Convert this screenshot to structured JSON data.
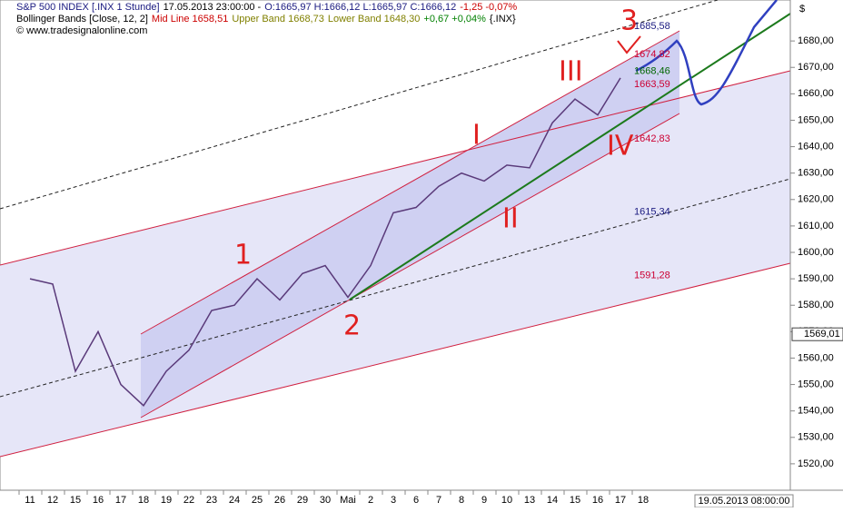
{
  "chart_data": {
    "type": "line",
    "header_lines": [
      [
        {
          "text": "S&P 500 INDEX [.INX  1 Stunde]",
          "color": "#1a1a80"
        },
        {
          "text": "17.05.2013 23:00:00 -",
          "color": "#000000"
        },
        {
          "text": "O:1665,97 H:1666,12 L:1665,97 C:1666,12",
          "color": "#1a1a80"
        },
        {
          "text": "-1,25 -0,07%",
          "color": "#cc0000"
        }
      ],
      [
        {
          "text": "Bollinger Bands [Close, 12, 2]",
          "color": "#000000"
        },
        {
          "text": "Mid Line 1658,51",
          "color": "#cc0000"
        },
        {
          "text": "Upper Band 1668,73",
          "color": "#808000"
        },
        {
          "text": "Lower Band 1648,30",
          "color": "#808000"
        },
        {
          "text": "+0,67 +0,04%",
          "color": "#008000"
        },
        {
          "text": "{.INX}",
          "color": "#000000"
        }
      ],
      [
        {
          "text": "© www.tradesignalonline.com",
          "color": "#000000"
        }
      ]
    ],
    "y_axis_label": "$",
    "timestamp": "19.05.2013 08:00:00",
    "categories": [
      "11",
      "12",
      "15",
      "16",
      "17",
      "18",
      "19",
      "22",
      "23",
      "24",
      "25",
      "26",
      "29",
      "30",
      "Mai",
      "2",
      "3",
      "6",
      "7",
      "8",
      "9",
      "10",
      "13",
      "14",
      "15",
      "16",
      "17",
      "18"
    ],
    "series": [
      {
        "name": "S&P 500 INDEX",
        "color": "#5a3a7a",
        "values": [
          1590,
          1588,
          1555,
          1570,
          1550,
          1542,
          1555,
          1563,
          1578,
          1580,
          1590,
          1582,
          1592,
          1595,
          1583,
          1595,
          1615,
          1617,
          1625,
          1630,
          1627,
          1633,
          1632,
          1649,
          1658,
          1652,
          1666,
          null
        ]
      }
    ],
    "ylim": [
      1510,
      1695.5
    ],
    "yticks": [
      {
        "value": 1520,
        "label": "1520,00"
      },
      {
        "value": 1530,
        "label": "1530,00"
      },
      {
        "value": 1540,
        "label": "1540,00"
      },
      {
        "value": 1550,
        "label": "1550,00"
      },
      {
        "value": 1560,
        "label": "1560,00"
      },
      {
        "value": 1570,
        "label": "1570,00"
      },
      {
        "value": 1580,
        "label": "1580,00"
      },
      {
        "value": 1590,
        "label": "1590,00"
      },
      {
        "value": 1600,
        "label": "1600,00"
      },
      {
        "value": 1610,
        "label": "1610,00"
      },
      {
        "value": 1620,
        "label": "1620,00"
      },
      {
        "value": 1630,
        "label": "1630,00"
      },
      {
        "value": 1640,
        "label": "1640,00"
      },
      {
        "value": 1650,
        "label": "1650,00"
      },
      {
        "value": 1660,
        "label": "1660,00"
      },
      {
        "value": 1670,
        "label": "1670,00"
      },
      {
        "value": 1680,
        "label": "1680,00"
      }
    ],
    "last_price": {
      "value": 1569.01,
      "label": "1569,01"
    },
    "price_labels": [
      {
        "value": 1685.58,
        "label": "1685,58",
        "color": "#1a1a80"
      },
      {
        "value": 1674.82,
        "label": "1674,82",
        "color": "#cc0033"
      },
      {
        "value": 1668.46,
        "label": "1668,46",
        "color": "#006600"
      },
      {
        "value": 1663.59,
        "label": "1663,59",
        "color": "#cc0033"
      },
      {
        "value": 1642.83,
        "label": "1642,83",
        "color": "#cc0033"
      },
      {
        "value": 1615.34,
        "label": "1615,34",
        "color": "#1a1a80"
      },
      {
        "value": 1591.28,
        "label": "1591,28",
        "color": "#cc0033"
      }
    ],
    "wave_labels": [
      "1",
      "2",
      "3",
      "I",
      "II",
      "III",
      "IV"
    ]
  }
}
